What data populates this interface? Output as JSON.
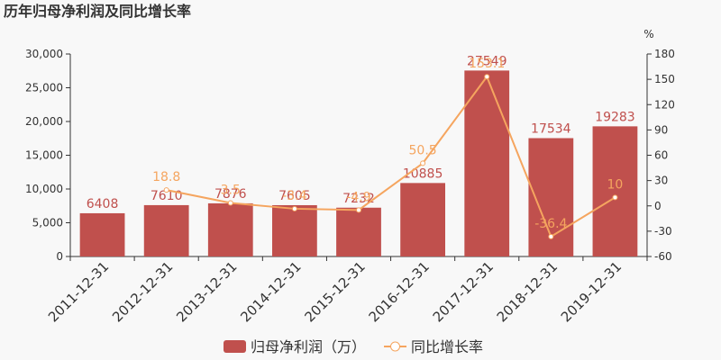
{
  "chart_data": {
    "type": "bar",
    "title": "历年归母净利润及同比增长率",
    "categories": [
      "2011-12-31",
      "2012-12-31",
      "2013-12-31",
      "2014-12-31",
      "2015-12-31",
      "2016-12-31",
      "2017-12-31",
      "2018-12-31",
      "2019-12-31"
    ],
    "series": [
      {
        "name": "归母净利润（万）",
        "type": "bar",
        "color": "#c0504d",
        "values": [
          6408,
          7610,
          7876,
          7605,
          7232,
          10885,
          27549,
          17534,
          19283
        ]
      },
      {
        "name": "同比增长率",
        "type": "line",
        "axis": "y2",
        "color": "#f5a55f",
        "values": [
          null,
          18.8,
          3.5,
          -3.4,
          -4.9,
          50.5,
          153.1,
          -36.4,
          10
        ]
      }
    ],
    "ylim": [
      0,
      30000
    ],
    "yticks": [
      0,
      {
        "value": 5000,
        "label": "5,000"
      },
      {
        "value": 10000,
        "label": "10,000"
      },
      {
        "value": 15000,
        "label": "15,000"
      },
      {
        "value": 20000,
        "label": "20,000"
      },
      {
        "value": 25000,
        "label": "25,000"
      },
      {
        "value": 30000,
        "label": "30,000"
      }
    ],
    "y2lim": [
      -60,
      180
    ],
    "y2ticks": [
      -60,
      -30,
      0,
      30,
      60,
      90,
      120,
      150,
      180
    ],
    "y2_label": "%",
    "legend": "bottom"
  }
}
